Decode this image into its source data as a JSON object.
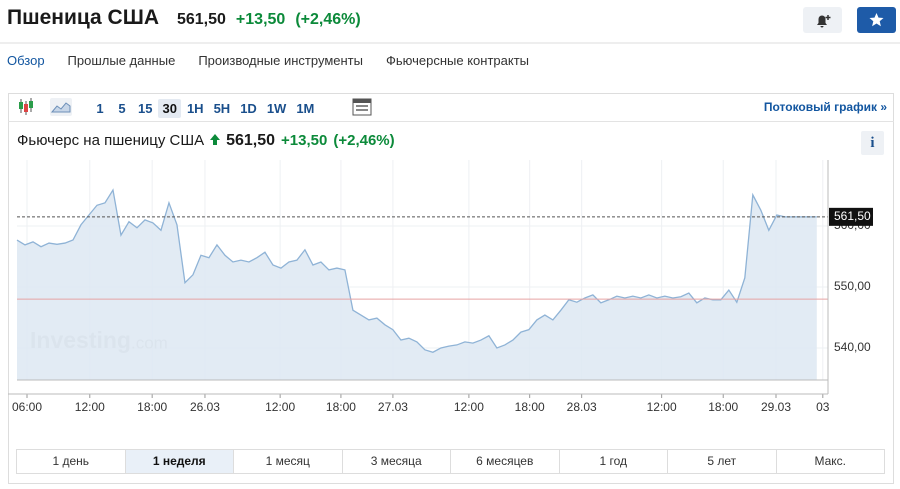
{
  "header": {
    "title": "Пшеница США",
    "price": "561,50",
    "change": "+13,50",
    "change_pct": "(+2,46%)"
  },
  "tabs": {
    "items": [
      "Обзор",
      "Прошлые данные",
      "Производные инструменты",
      "Фьючерсные контракты"
    ],
    "selected": 0
  },
  "toolbar": {
    "intervals": [
      "1",
      "5",
      "15",
      "30",
      "1H",
      "5H",
      "1D",
      "1W",
      "1M"
    ],
    "selected": 3,
    "streaming_link": "Потоковый график »"
  },
  "chart_data": {
    "type": "area",
    "title": "Фьючерс на пшеницу США",
    "price": "561,50",
    "change": "+13,50",
    "change_pct": "(+2,46%)",
    "x": [
      0,
      1,
      2,
      3,
      4,
      5,
      6,
      7,
      8,
      9,
      10,
      11,
      12,
      13,
      14,
      15,
      16,
      17,
      18,
      19,
      20,
      21,
      22,
      23,
      24,
      25,
      26,
      27,
      28,
      29,
      30,
      31,
      32,
      33,
      34,
      35,
      36,
      37,
      38,
      39,
      40,
      41,
      42,
      43,
      44,
      45,
      46,
      47,
      48,
      49,
      50,
      51,
      52,
      53,
      54,
      55,
      56,
      57,
      58,
      59,
      60,
      61,
      62,
      63,
      64,
      65,
      66,
      67,
      68,
      69,
      70,
      71,
      72,
      73,
      74,
      75,
      76,
      77,
      78,
      79,
      80,
      81,
      82,
      83,
      84,
      85,
      86,
      87,
      88,
      89,
      90,
      91,
      92,
      93,
      94,
      95,
      96,
      97,
      98,
      99,
      100
    ],
    "values": [
      557.7,
      556.9,
      557.4,
      556.6,
      557.2,
      557.0,
      557.2,
      557.7,
      560.2,
      561.8,
      563.4,
      563.8,
      565.9,
      558.5,
      560.7,
      559.7,
      561.0,
      560.5,
      559.3,
      563.8,
      560.2,
      550.7,
      552.0,
      555.2,
      554.8,
      556.9,
      555.2,
      554.1,
      554.4,
      554.1,
      554.8,
      555.7,
      553.6,
      553.1,
      554.1,
      554.4,
      556.1,
      553.6,
      554.1,
      552.8,
      553.1,
      552.8,
      546.2,
      545.4,
      544.6,
      544.9,
      543.8,
      543.0,
      541.3,
      541.6,
      541.0,
      539.7,
      539.3,
      540.0,
      540.3,
      540.5,
      541.0,
      540.8,
      541.3,
      542.0,
      540.0,
      540.5,
      541.3,
      542.6,
      543.0,
      544.6,
      545.4,
      544.6,
      546.2,
      547.9,
      547.5,
      548.2,
      548.7,
      547.4,
      547.9,
      548.5,
      548.2,
      548.5,
      548.2,
      548.7,
      548.2,
      548.5,
      548.2,
      548.4,
      549.0,
      547.4,
      548.2,
      547.9,
      547.9,
      549.5,
      547.5,
      551.5,
      565.1,
      562.6,
      559.3,
      561.8,
      561.5,
      561.5,
      561.5,
      561.5,
      561.5
    ],
    "color": "#8fb3d6",
    "xlim": [
      0,
      101.4
    ],
    "xticks": [
      {
        "value": 1.25,
        "label": "06:00"
      },
      {
        "value": 9.1,
        "label": "12:00"
      },
      {
        "value": 16.9,
        "label": "18:00"
      },
      {
        "value": 23.5,
        "label": "26.03"
      },
      {
        "value": 32.9,
        "label": "12:00"
      },
      {
        "value": 40.5,
        "label": "18:00"
      },
      {
        "value": 47,
        "label": "27.03"
      },
      {
        "value": 56.5,
        "label": "12:00"
      },
      {
        "value": 64.1,
        "label": "18:00"
      },
      {
        "value": 70.6,
        "label": "28.03"
      },
      {
        "value": 80.6,
        "label": "12:00"
      },
      {
        "value": 88.3,
        "label": "18:00"
      },
      {
        "value": 94.9,
        "label": "29.03"
      },
      {
        "value": 100.75,
        "label": "03"
      }
    ],
    "ylim": [
      534.75,
      570.82
    ],
    "yticks": [
      {
        "value": 540,
        "label": "540,00"
      },
      {
        "value": 550,
        "label": "550,00"
      },
      {
        "value": 560,
        "label": "560,00"
      }
    ],
    "last_price": {
      "value": 561.5,
      "label": "561,50"
    },
    "reference_line": 548,
    "watermark": [
      "Investing",
      ".com"
    ]
  },
  "ranges": {
    "items": [
      "1 день",
      "1 неделя",
      "1 месяц",
      "3 месяца",
      "6 месяцев",
      "1 год",
      "5 лет",
      "Макс."
    ],
    "selected": 1
  }
}
